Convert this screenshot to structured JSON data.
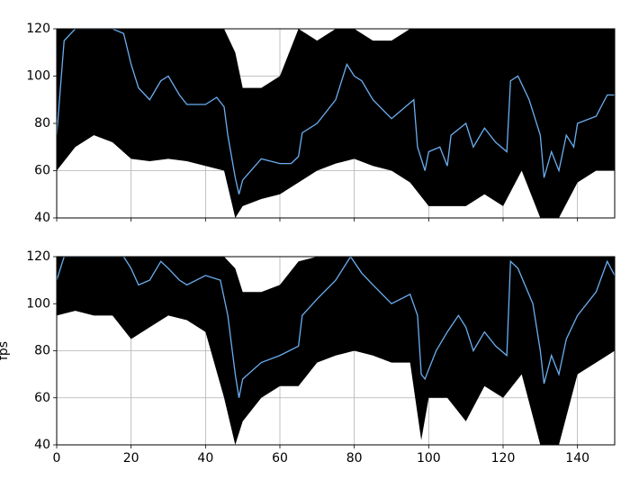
{
  "chart_data": [
    {
      "type": "line",
      "xlim": [
        0,
        150
      ],
      "ylim": [
        40,
        120
      ],
      "xticks": [
        0,
        20,
        40,
        60,
        80,
        100,
        120,
        140
      ],
      "yticks": [
        40,
        60,
        80,
        100,
        120
      ],
      "grid": true,
      "show_xtick_labels": false,
      "x": [
        0,
        2,
        5,
        10,
        15,
        18,
        20,
        22,
        25,
        28,
        30,
        33,
        35,
        40,
        43,
        45,
        46,
        48,
        49,
        50,
        55,
        60,
        63,
        65,
        66,
        70,
        75,
        78,
        80,
        82,
        85,
        90,
        93,
        96,
        97,
        99,
        100,
        103,
        105,
        106,
        110,
        112,
        115,
        118,
        121,
        122,
        124,
        127,
        130,
        131,
        133,
        135,
        137,
        139,
        140,
        145,
        148,
        150
      ],
      "series": [
        {
          "color": "#6aaef0",
          "values": [
            75,
            115,
            120,
            120,
            120,
            118,
            105,
            95,
            90,
            98,
            100,
            92,
            88,
            88,
            91,
            87,
            75,
            57,
            50,
            56,
            65,
            63,
            63,
            66,
            76,
            80,
            90,
            105,
            100,
            98,
            90,
            82,
            86,
            90,
            70,
            60,
            68,
            70,
            62,
            75,
            80,
            70,
            78,
            72,
            68,
            98,
            100,
            90,
            75,
            57,
            68,
            60,
            75,
            70,
            80,
            83,
            92,
            92
          ]
        }
      ],
      "band": {
        "color": "#000000",
        "x": [
          0,
          5,
          10,
          15,
          20,
          25,
          30,
          35,
          40,
          45,
          48,
          50,
          55,
          60,
          65,
          70,
          75,
          80,
          85,
          90,
          95,
          100,
          105,
          110,
          115,
          120,
          125,
          130,
          135,
          140,
          145,
          150
        ],
        "lower": [
          60,
          70,
          75,
          72,
          65,
          64,
          65,
          64,
          62,
          60,
          40,
          45,
          48,
          50,
          55,
          60,
          63,
          65,
          62,
          60,
          55,
          45,
          45,
          45,
          50,
          45,
          60,
          40,
          40,
          55,
          60,
          60
        ],
        "upper": [
          120,
          120,
          120,
          120,
          120,
          120,
          120,
          120,
          120,
          120,
          110,
          95,
          95,
          100,
          120,
          115,
          120,
          120,
          115,
          115,
          120,
          120,
          120,
          120,
          120,
          120,
          120,
          120,
          120,
          120,
          120,
          120
        ]
      }
    },
    {
      "type": "line",
      "xlim": [
        0,
        150
      ],
      "ylim": [
        40,
        120
      ],
      "xticks": [
        0,
        20,
        40,
        60,
        80,
        100,
        120,
        140
      ],
      "yticks": [
        40,
        60,
        80,
        100,
        120
      ],
      "grid": true,
      "show_xtick_labels": true,
      "ylabel": "fps",
      "x": [
        0,
        2,
        10,
        18,
        20,
        22,
        25,
        28,
        30,
        33,
        35,
        40,
        44,
        46,
        48,
        49,
        50,
        55,
        60,
        65,
        66,
        70,
        75,
        79,
        82,
        85,
        90,
        95,
        97,
        98,
        99,
        102,
        105,
        108,
        110,
        112,
        115,
        118,
        121,
        122,
        124,
        128,
        130,
        131,
        133,
        135,
        137,
        140,
        145,
        148,
        150
      ],
      "series": [
        {
          "color": "#6aaef0",
          "values": [
            110,
            120,
            120,
            120,
            115,
            108,
            110,
            118,
            115,
            110,
            108,
            112,
            110,
            95,
            70,
            60,
            68,
            75,
            78,
            82,
            95,
            102,
            110,
            120,
            113,
            108,
            100,
            104,
            95,
            70,
            68,
            80,
            88,
            95,
            90,
            80,
            88,
            82,
            78,
            118,
            115,
            100,
            80,
            66,
            78,
            70,
            85,
            95,
            105,
            118,
            112
          ]
        }
      ],
      "band": {
        "color": "#000000",
        "x": [
          0,
          5,
          10,
          15,
          20,
          25,
          30,
          35,
          40,
          45,
          48,
          50,
          55,
          60,
          65,
          70,
          75,
          80,
          85,
          90,
          95,
          98,
          100,
          105,
          110,
          115,
          120,
          125,
          130,
          135,
          140,
          145,
          150
        ],
        "lower": [
          95,
          97,
          95,
          95,
          85,
          90,
          95,
          93,
          88,
          60,
          40,
          50,
          60,
          65,
          65,
          75,
          78,
          80,
          78,
          75,
          75,
          42,
          60,
          60,
          50,
          65,
          60,
          70,
          40,
          40,
          70,
          75,
          80
        ],
        "upper": [
          120,
          120,
          120,
          120,
          120,
          120,
          120,
          120,
          120,
          120,
          115,
          105,
          105,
          108,
          118,
          120,
          120,
          120,
          120,
          120,
          120,
          120,
          120,
          120,
          120,
          120,
          120,
          120,
          120,
          120,
          120,
          120,
          120
        ]
      }
    }
  ]
}
